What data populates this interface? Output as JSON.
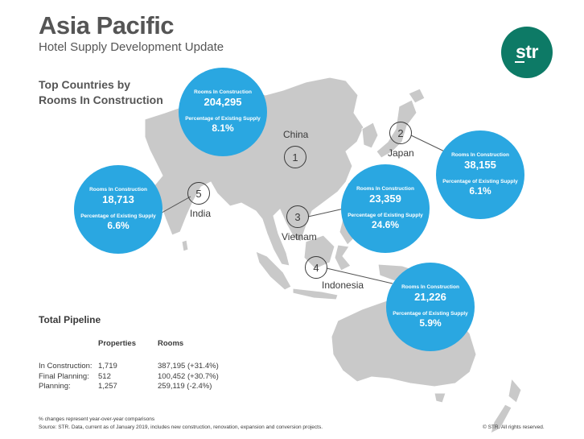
{
  "header": {
    "title": "Asia Pacific",
    "subtitle": "Hotel Supply Development Update",
    "section_title_line1": "Top Countries by",
    "section_title_line2": "Rooms In Construction"
  },
  "logo": {
    "text": "str",
    "color": "#0d7a66"
  },
  "colors": {
    "bubble": "#2aa7e1",
    "land": "#c9c9c9"
  },
  "bubble_labels": {
    "rooms": "Rooms In Construction",
    "percent": "Percentage of Existing Supply"
  },
  "countries": [
    {
      "rank": "1",
      "name": "China",
      "rooms": "204,295",
      "percent": "8.1%"
    },
    {
      "rank": "2",
      "name": "Japan",
      "rooms": "38,155",
      "percent": "6.1%"
    },
    {
      "rank": "3",
      "name": "Vietnam",
      "rooms": "23,359",
      "percent": "24.6%"
    },
    {
      "rank": "4",
      "name": "Indonesia",
      "rooms": "21,226",
      "percent": "5.9%"
    },
    {
      "rank": "5",
      "name": "India",
      "rooms": "18,713",
      "percent": "6.6%"
    }
  ],
  "pipeline": {
    "title": "Total Pipeline",
    "col_properties": "Properties",
    "col_rooms": "Rooms",
    "rows": [
      {
        "label": "In Construction:",
        "properties": "1,719",
        "rooms": "387,195 (+31.4%)"
      },
      {
        "label": "Final Planning:",
        "properties": "512",
        "rooms": "100,452 (+30.7%)"
      },
      {
        "label": "Planning:",
        "properties": "1,257",
        "rooms": "259,119 (-2.4%)"
      }
    ]
  },
  "footer": {
    "note": "% changes represent year-over-year comparisons",
    "source": "Source: STR. Data, current as of January 2019, includes new construction, renovation, expansion and conversion projects.",
    "copyright": "© STR. All rights reserved."
  }
}
